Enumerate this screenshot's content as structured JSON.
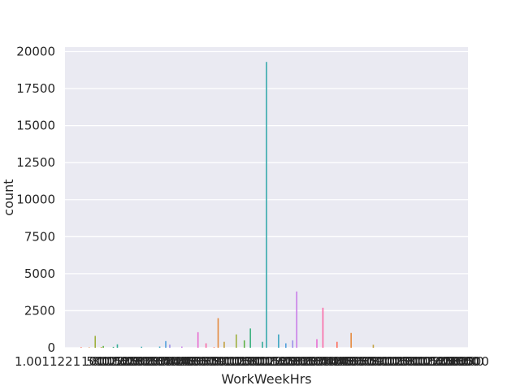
{
  "chart_data": {
    "type": "bar",
    "xlabel": "WorkWeekHrs",
    "ylabel": "count",
    "ylim": [
      0,
      20300
    ],
    "yticks": [
      0,
      2500,
      5000,
      7500,
      10000,
      12500,
      15000,
      17500,
      20000
    ],
    "ytick_labels": [
      "0",
      "2500",
      "5000",
      "7500",
      "10000",
      "12500",
      "15000",
      "17500",
      "20000"
    ],
    "x_first_tick_label": "1.0011221",
    "x_last_tick_label": "4800",
    "x_tick_labels_overlapping": true,
    "grid": true,
    "legend": "none",
    "background_color": "#eaeaf2",
    "grid_color": "#ffffff",
    "palette": [
      "#fe6d5c",
      "#e58a3f",
      "#c2a03e",
      "#9eb03e",
      "#5fb245",
      "#3bb07e",
      "#35ad97",
      "#37a9ac",
      "#3aa5c1",
      "#52a0dc",
      "#9b8fe8",
      "#c97ee8",
      "#e86ed1",
      "#fa6aa6"
    ],
    "x": [
      1,
      5,
      8,
      10,
      12,
      15,
      16,
      20,
      25,
      28,
      30,
      32,
      35,
      36,
      37,
      38,
      40,
      42,
      44,
      45,
      48,
      50,
      55,
      60,
      65,
      70,
      80,
      90,
      100,
      120,
      168
    ],
    "values": [
      40,
      30,
      50,
      800,
      120,
      60,
      230,
      70,
      80,
      450,
      210,
      80,
      1050,
      300,
      40,
      2000,
      400,
      900,
      500,
      1300,
      400,
      19300,
      900,
      300,
      500,
      3800,
      580,
      2700,
      400,
      1000,
      200
    ],
    "x_positions_fraction": [
      0.04,
      0.06,
      0.09,
      0.075,
      0.095,
      0.12,
      0.13,
      0.19,
      0.235,
      0.25,
      0.26,
      0.29,
      0.33,
      0.35,
      0.37,
      0.38,
      0.395,
      0.425,
      0.445,
      0.46,
      0.49,
      0.5,
      0.53,
      0.548,
      0.565,
      0.575,
      0.625,
      0.64,
      0.675,
      0.71,
      0.765
    ]
  }
}
